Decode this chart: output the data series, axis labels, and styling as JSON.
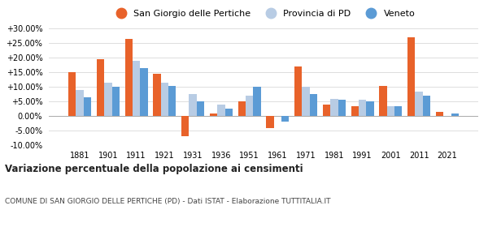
{
  "years": [
    1881,
    1901,
    1911,
    1921,
    1931,
    1936,
    1951,
    1961,
    1971,
    1981,
    1991,
    2001,
    2011,
    2021
  ],
  "san_giorgio": [
    15.0,
    19.5,
    26.5,
    14.5,
    -7.0,
    0.8,
    5.0,
    -4.0,
    17.0,
    4.0,
    3.5,
    10.5,
    27.0,
    1.5
  ],
  "provincia_pd": [
    9.0,
    11.5,
    19.0,
    11.5,
    7.5,
    4.0,
    7.0,
    0.0,
    10.0,
    6.0,
    5.5,
    3.5,
    8.5,
    null
  ],
  "veneto": [
    6.5,
    10.0,
    16.5,
    10.5,
    5.0,
    2.5,
    10.0,
    -2.0,
    7.5,
    5.5,
    5.0,
    3.5,
    7.0,
    0.8
  ],
  "color_san_giorgio": "#e8622a",
  "color_provincia": "#b8cce4",
  "color_veneto": "#5b9bd5",
  "title": "Variazione percentuale della popolazione ai censimenti",
  "subtitle": "COMUNE DI SAN GIORGIO DELLE PERTICHE (PD) - Dati ISTAT - Elaborazione TUTTITALIA.IT",
  "ylim_min": -10.0,
  "ylim_max": 30.0,
  "yticks": [
    -10.0,
    -5.0,
    0.0,
    5.0,
    10.0,
    15.0,
    20.0,
    25.0,
    30.0
  ],
  "bar_width": 0.27
}
